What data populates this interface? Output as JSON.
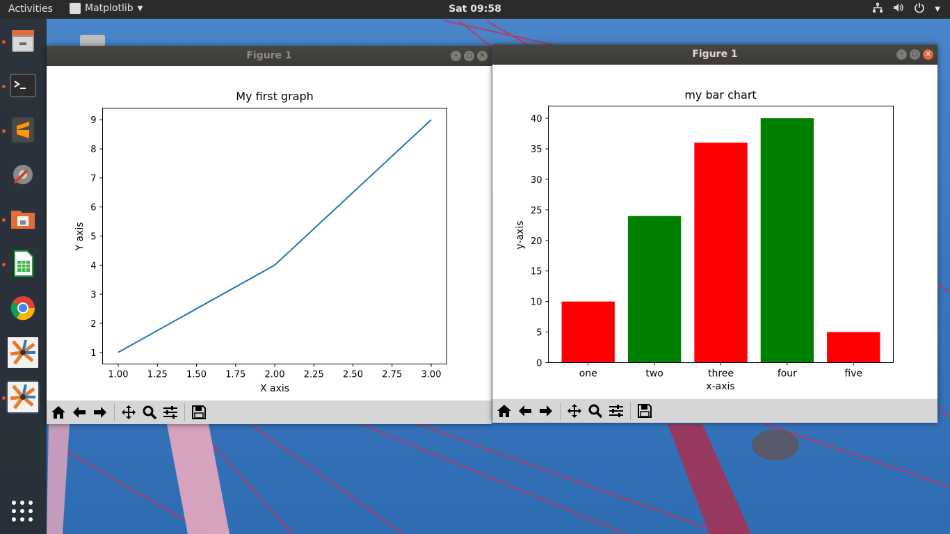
{
  "topbar": {
    "activities": "Activities",
    "app_name": "Matplotlib",
    "clock": "Sat 09:58"
  },
  "dock": {
    "items": [
      "files-icon",
      "terminal-icon",
      "sublime-text-icon",
      "settings-icon",
      "file-manager-icon",
      "spreadsheet-icon",
      "chrome-icon",
      "matplotlib-icon",
      "matplotlib-icon"
    ]
  },
  "windows": [
    {
      "title": "Figure 1",
      "active": false,
      "toolbar": [
        "home-icon",
        "back-arrow-icon",
        "forward-arrow-icon",
        "pan-icon",
        "zoom-icon",
        "configure-subplots-icon",
        "save-icon"
      ]
    },
    {
      "title": "Figure 1",
      "active": true,
      "toolbar": [
        "home-icon",
        "back-arrow-icon",
        "forward-arrow-icon",
        "pan-icon",
        "zoom-icon",
        "configure-subplots-icon",
        "save-icon"
      ]
    }
  ],
  "chart_data": [
    {
      "type": "line",
      "title": "My first graph",
      "xlabel": "X axis",
      "ylabel": "Y axis",
      "x": [
        1,
        2,
        3
      ],
      "y": [
        1,
        4,
        9
      ],
      "xticks": [
        "1.00",
        "1.25",
        "1.50",
        "1.75",
        "2.00",
        "2.25",
        "2.50",
        "2.75",
        "3.00"
      ],
      "yticks": [
        "1",
        "2",
        "3",
        "4",
        "5",
        "6",
        "7",
        "8",
        "9"
      ],
      "xlim": [
        0.9,
        3.1
      ],
      "ylim": [
        0.6,
        9.4
      ],
      "color": "#1f77b4"
    },
    {
      "type": "bar",
      "title": "my bar chart",
      "xlabel": "x-axis",
      "ylabel": "y-axis",
      "categories": [
        "one",
        "two",
        "three",
        "four",
        "five"
      ],
      "values": [
        10,
        24,
        36,
        40,
        5
      ],
      "colors": [
        "#ff0000",
        "#008000",
        "#ff0000",
        "#008000",
        "#ff0000"
      ],
      "yticks": [
        "0",
        "5",
        "10",
        "15",
        "20",
        "25",
        "30",
        "35",
        "40"
      ],
      "ylim": [
        0,
        42
      ]
    }
  ]
}
